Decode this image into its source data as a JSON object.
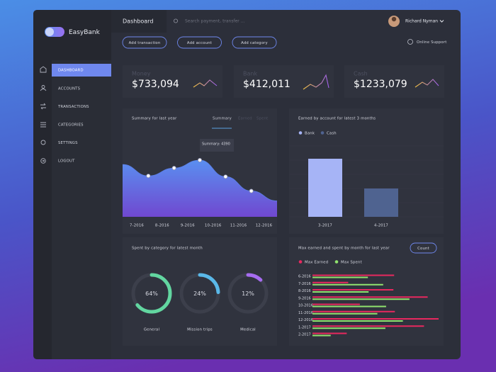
{
  "app": {
    "name": "EasyBank"
  },
  "header": {
    "title": "Dashboard",
    "search_placeholder": "Search payment, transfer ...",
    "user": "Richard Nyman",
    "actions": [
      "Add transaction",
      "Add account",
      "Add category"
    ],
    "support": "Online Support"
  },
  "menu": [
    "DASHBOARD",
    "ACCOUNTS",
    "TRANSACTIONS",
    "CATEGORIES",
    "SETTINGS",
    "LOGOUT"
  ],
  "cards": [
    {
      "label": "Money",
      "value": "$733,094"
    },
    {
      "label": "Bank",
      "value": "$412,011"
    },
    {
      "label": "Cash",
      "value": "$1233,079"
    }
  ],
  "summary_chart": {
    "type": "area",
    "title": "Summary for last year",
    "tabs": [
      "Summary",
      "Earned",
      "Spent"
    ],
    "tooltip": "Summary: 4390",
    "x_labels": [
      "7-2016",
      "8-2016",
      "9-2016",
      "10-2016",
      "11-2016",
      "12-2016"
    ],
    "values": [
      4050,
      3170,
      3780,
      4390,
      3110,
      2000,
      1230
    ],
    "color": "#5b7fe6"
  },
  "account_chart": {
    "type": "bar",
    "title": "Earned by account for latest 3 months",
    "categories": [
      "3-2017",
      "4-2017"
    ],
    "series": [
      {
        "name": "Bank",
        "color": "#a6b4f6",
        "values": [
          82,
          null
        ]
      },
      {
        "name": "Cash",
        "color": "#4f6390",
        "values": [
          null,
          40
        ]
      }
    ]
  },
  "category_chart": {
    "type": "donut",
    "title": "Spent by category for latest month",
    "categories": [
      "General",
      "Mission trips",
      "Medical"
    ],
    "values": [
      64,
      24,
      12
    ],
    "value_labels": [
      "64%",
      "24%",
      "12%"
    ],
    "colors": [
      "#62d6a0",
      "#5ab8e8",
      "#a66cf0"
    ]
  },
  "monthly_chart": {
    "type": "hbar",
    "title": "Max earned and spent by month for last year",
    "button": "Count",
    "categories": [
      "6-2016",
      "7-2016",
      "8-2016",
      "9-2016",
      "10-2016",
      "11-2016",
      "12-2016",
      "1-2017",
      "2-2017"
    ],
    "series": [
      {
        "name": "Max Earned",
        "color": "#e8285f",
        "values": [
          112,
          49,
          111,
          158,
          65,
          113,
          173,
          153,
          47
        ]
      },
      {
        "name": "Max Spent",
        "color": "#90e36e",
        "values": [
          76,
          97,
          77,
          133,
          101,
          89,
          124,
          100,
          25
        ]
      }
    ]
  }
}
